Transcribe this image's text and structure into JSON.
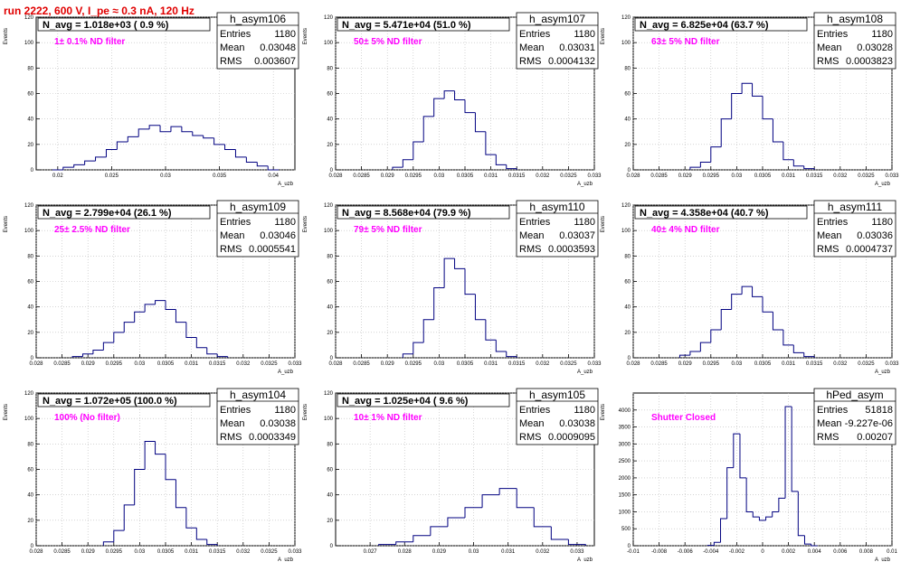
{
  "run_title": "run 2222,   600 V, I_pe ≈ 0.3 nA, 120 Hz",
  "chart_data": [
    {
      "type": "histogram",
      "name": "h_asym106",
      "stats": {
        "entries": "1180",
        "mean": "0.03048",
        "rms": "0.003607"
      },
      "navg_label": "N_avg = 1.018e+03 ( 0.9 %)",
      "filter_label": "1± 0.1% ND filter",
      "ylabel": "Events",
      "xlabel": "A_uzb",
      "xlim": [
        0.018,
        0.042
      ],
      "ylim": [
        0,
        120
      ],
      "xticks": [
        "0.02",
        "0.025",
        "0.03",
        "0.035",
        "0.04"
      ],
      "yticks": [
        "0",
        "20",
        "40",
        "60",
        "80",
        "100",
        "120"
      ],
      "x": [
        0.02,
        0.021,
        0.022,
        0.023,
        0.024,
        0.025,
        0.026,
        0.027,
        0.028,
        0.029,
        0.03,
        0.031,
        0.032,
        0.033,
        0.034,
        0.035,
        0.036,
        0.037,
        0.038,
        0.039,
        0.04
      ],
      "y": [
        0,
        2,
        4,
        7,
        10,
        16,
        22,
        26,
        32,
        35,
        30,
        34,
        30,
        27,
        25,
        20,
        16,
        10,
        6,
        3,
        0
      ]
    },
    {
      "type": "histogram",
      "name": "h_asym107",
      "stats": {
        "entries": "1180",
        "mean": "0.03031",
        "rms": "0.0004132"
      },
      "navg_label": "N_avg = 5.471e+04 (51.0 %)",
      "filter_label": "50± 5% ND filter",
      "ylabel": "Events",
      "xlabel": "A_uzb",
      "xlim": [
        0.028,
        0.033
      ],
      "ylim": [
        0,
        120
      ],
      "xticks": [
        "0.028",
        "0.0285",
        "0.029",
        "0.0295",
        "0.03",
        "0.0305",
        "0.031",
        "0.0315",
        "0.032",
        "0.0325",
        "0.033"
      ],
      "yticks": [
        "0",
        "20",
        "40",
        "60",
        "80",
        "100",
        "120"
      ],
      "x": [
        0.0292,
        0.0294,
        0.0296,
        0.0298,
        0.03,
        0.0302,
        0.0304,
        0.0306,
        0.0308,
        0.031,
        0.0312,
        0.0314
      ],
      "y": [
        2,
        8,
        22,
        42,
        56,
        62,
        55,
        45,
        30,
        12,
        4,
        1
      ]
    },
    {
      "type": "histogram",
      "name": "h_asym108",
      "stats": {
        "entries": "1180",
        "mean": "0.03028",
        "rms": "0.0003823"
      },
      "navg_label": "N_avg = 6.825e+04 (63.7 %)",
      "filter_label": "63± 5% ND filter",
      "ylabel": "Events",
      "xlabel": "A_uzb",
      "xlim": [
        0.028,
        0.033
      ],
      "ylim": [
        0,
        120
      ],
      "xticks": [
        "0.028",
        "0.0285",
        "0.029",
        "0.0295",
        "0.03",
        "0.0305",
        "0.031",
        "0.0315",
        "0.032",
        "0.0325",
        "0.033"
      ],
      "yticks": [
        "0",
        "20",
        "40",
        "60",
        "80",
        "100",
        "120"
      ],
      "x": [
        0.0292,
        0.0294,
        0.0296,
        0.0298,
        0.03,
        0.0302,
        0.0304,
        0.0306,
        0.0308,
        0.031,
        0.0312,
        0.0314
      ],
      "y": [
        2,
        6,
        18,
        40,
        60,
        68,
        58,
        40,
        22,
        8,
        3,
        1
      ]
    },
    {
      "type": "histogram",
      "name": "h_asym109",
      "stats": {
        "entries": "1180",
        "mean": "0.03046",
        "rms": "0.0005541"
      },
      "navg_label": "N_avg = 2.799e+04 (26.1 %)",
      "filter_label": "25± 2.5% ND filter",
      "ylabel": "Events",
      "xlabel": "A_uzb",
      "xlim": [
        0.028,
        0.033
      ],
      "ylim": [
        0,
        120
      ],
      "xticks": [
        "0.028",
        "0.0285",
        "0.029",
        "0.0295",
        "0.03",
        "0.0305",
        "0.031",
        "0.0315",
        "0.032",
        "0.0325",
        "0.033"
      ],
      "yticks": [
        "0",
        "20",
        "40",
        "60",
        "80",
        "100",
        "120"
      ],
      "x": [
        0.0288,
        0.029,
        0.0292,
        0.0294,
        0.0296,
        0.0298,
        0.03,
        0.0302,
        0.0304,
        0.0306,
        0.0308,
        0.031,
        0.0312,
        0.0314,
        0.0316
      ],
      "y": [
        1,
        3,
        6,
        12,
        20,
        28,
        36,
        42,
        45,
        38,
        28,
        16,
        8,
        3,
        1
      ]
    },
    {
      "type": "histogram",
      "name": "h_asym110",
      "stats": {
        "entries": "1180",
        "mean": "0.03037",
        "rms": "0.0003593"
      },
      "navg_label": "N_avg = 8.568e+04 (79.9 %)",
      "filter_label": "79± 5% ND filter",
      "ylabel": "Events",
      "xlabel": "A_uzb",
      "xlim": [
        0.028,
        0.033
      ],
      "ylim": [
        0,
        120
      ],
      "xticks": [
        "0.028",
        "0.0285",
        "0.029",
        "0.0295",
        "0.03",
        "0.0305",
        "0.031",
        "0.0315",
        "0.032",
        "0.0325",
        "0.033"
      ],
      "yticks": [
        "0",
        "20",
        "40",
        "60",
        "80",
        "100",
        "120"
      ],
      "x": [
        0.0294,
        0.0296,
        0.0298,
        0.03,
        0.0302,
        0.0304,
        0.0306,
        0.0308,
        0.031,
        0.0312,
        0.0314
      ],
      "y": [
        3,
        12,
        30,
        55,
        78,
        70,
        50,
        30,
        14,
        5,
        1
      ]
    },
    {
      "type": "histogram",
      "name": "h_asym111",
      "stats": {
        "entries": "1180",
        "mean": "0.03036",
        "rms": "0.0004737"
      },
      "navg_label": "N_avg = 4.358e+04 (40.7 %)",
      "filter_label": "40± 4% ND filter",
      "ylabel": "Events",
      "xlabel": "A_uzb",
      "xlim": [
        0.028,
        0.033
      ],
      "ylim": [
        0,
        120
      ],
      "xticks": [
        "0.028",
        "0.0285",
        "0.029",
        "0.0295",
        "0.03",
        "0.0305",
        "0.031",
        "0.0315",
        "0.032",
        "0.0325",
        "0.033"
      ],
      "yticks": [
        "0",
        "20",
        "40",
        "60",
        "80",
        "100",
        "120"
      ],
      "x": [
        0.029,
        0.0292,
        0.0294,
        0.0296,
        0.0298,
        0.03,
        0.0302,
        0.0304,
        0.0306,
        0.0308,
        0.031,
        0.0312,
        0.0314
      ],
      "y": [
        2,
        5,
        12,
        22,
        38,
        50,
        56,
        48,
        36,
        22,
        10,
        4,
        1
      ]
    },
    {
      "type": "histogram",
      "name": "h_asym104",
      "stats": {
        "entries": "1180",
        "mean": "0.03038",
        "rms": "0.0003349"
      },
      "navg_label": "N_avg = 1.072e+05 (100.0 %)",
      "filter_label": "100% (No filter)",
      "ylabel": "Events",
      "xlabel": "A_uzb",
      "xlim": [
        0.028,
        0.033
      ],
      "ylim": [
        0,
        120
      ],
      "xticks": [
        "0.028",
        "0.0285",
        "0.029",
        "0.0295",
        "0.03",
        "0.0305",
        "0.031",
        "0.0315",
        "0.032",
        "0.0325",
        "0.033"
      ],
      "yticks": [
        "0",
        "20",
        "40",
        "60",
        "80",
        "100",
        "120"
      ],
      "x": [
        0.0294,
        0.0296,
        0.0298,
        0.03,
        0.0302,
        0.0304,
        0.0306,
        0.0308,
        0.031,
        0.0312,
        0.0314
      ],
      "y": [
        3,
        12,
        32,
        60,
        82,
        72,
        52,
        30,
        14,
        5,
        1
      ]
    },
    {
      "type": "histogram",
      "name": "h_asym105",
      "stats": {
        "entries": "1180",
        "mean": "0.03038",
        "rms": "0.0009095"
      },
      "navg_label": "N_avg = 1.025e+04 ( 9.6 %)",
      "filter_label": "10± 1% ND filter",
      "ylabel": "Events",
      "xlabel": "A_uzb",
      "xlim": [
        0.026,
        0.0335
      ],
      "ylim": [
        0,
        120
      ],
      "xticks": [
        "0.027",
        "0.028",
        "0.029",
        "0.03",
        "0.031",
        "0.032",
        "0.033"
      ],
      "yticks": [
        "0",
        "20",
        "40",
        "60",
        "80",
        "100",
        "120"
      ],
      "x": [
        0.0275,
        0.028,
        0.0285,
        0.029,
        0.0295,
        0.03,
        0.0305,
        0.031,
        0.0315,
        0.032,
        0.0325,
        0.033
      ],
      "y": [
        1,
        3,
        8,
        15,
        22,
        30,
        40,
        45,
        30,
        15,
        5,
        1
      ]
    },
    {
      "type": "histogram",
      "name": "hPed_asym",
      "stats": {
        "entries": "51818",
        "mean": "-9.227e-06",
        "rms": "0.00207"
      },
      "filter_label": "Shutter Closed",
      "ylabel": "Events",
      "xlabel": "A_uzb",
      "xlim": [
        -0.01,
        0.01
      ],
      "ylim": [
        0,
        4500
      ],
      "xticks": [
        "-0.01",
        "-0.008",
        "-0.006",
        "-0.004",
        "-0.002",
        "0",
        "0.002",
        "0.004",
        "0.006",
        "0.008",
        "0.01"
      ],
      "yticks": [
        "0",
        "500",
        "1000",
        "1500",
        "2000",
        "2500",
        "3000",
        "3500",
        "4000"
      ],
      "x": [
        -0.004,
        -0.0035,
        -0.003,
        -0.0025,
        -0.002,
        -0.0015,
        -0.001,
        -0.0005,
        0,
        0.0005,
        0.001,
        0.0015,
        0.002,
        0.0025,
        0.003,
        0.0035,
        0.004
      ],
      "y": [
        10,
        100,
        800,
        2300,
        3300,
        2000,
        1000,
        850,
        750,
        850,
        1000,
        1400,
        4100,
        1600,
        300,
        50,
        0
      ]
    }
  ]
}
